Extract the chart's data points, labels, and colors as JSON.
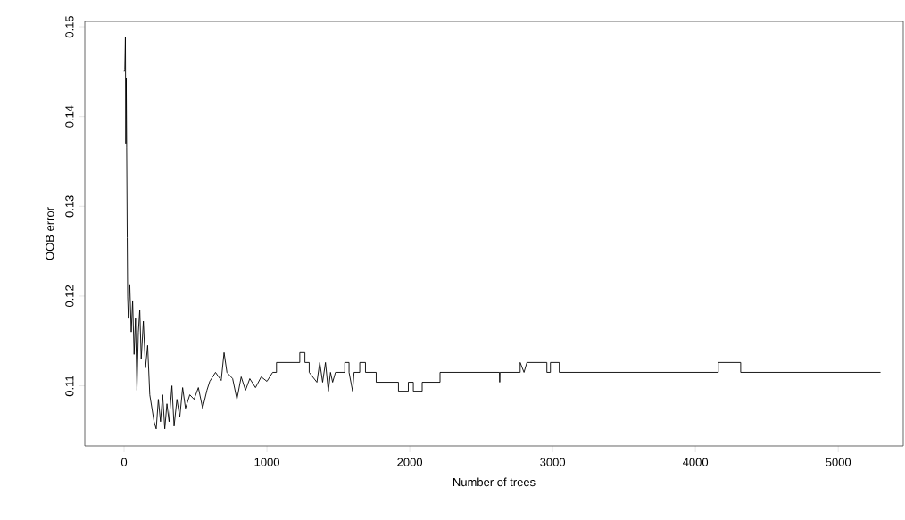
{
  "chart_data": {
    "type": "line",
    "xlabel": "Number of trees",
    "ylabel": "OOB error",
    "xlim": [
      -275,
      5455
    ],
    "ylim": [
      0.1033,
      0.1506
    ],
    "xticks": [
      0,
      1000,
      2000,
      3000,
      4000,
      5000
    ],
    "yticks": [
      {
        "value": 0.11,
        "label": "0.11"
      },
      {
        "value": 0.12,
        "label": "0.12"
      },
      {
        "value": 0.13,
        "label": "0.13"
      },
      {
        "value": 0.14,
        "label": "0.14"
      },
      {
        "value": 0.15,
        "label": "0.15"
      }
    ],
    "grid": false,
    "legend": false,
    "marker": "none",
    "line_style": "solid",
    "series": [
      {
        "color": "#000000",
        "x": [
          1,
          5,
          9,
          12,
          15,
          18,
          22,
          25,
          30,
          40,
          50,
          60,
          70,
          80,
          90,
          100,
          110,
          120,
          135,
          150,
          165,
          180,
          195,
          210,
          225,
          240,
          255,
          270,
          285,
          300,
          315,
          335,
          350,
          370,
          390,
          410,
          430,
          460,
          490,
          520,
          550,
          580,
          600,
          640,
          680,
          700,
          720,
          760,
          790,
          820,
          850,
          880,
          920,
          960,
          1000,
          1040,
          1067,
          1067,
          1230,
          1230,
          1266,
          1266,
          1296,
          1296,
          1350,
          1370,
          1390,
          1410,
          1430,
          1445,
          1460,
          1480,
          1545,
          1545,
          1575,
          1575,
          1600,
          1610,
          1650,
          1650,
          1690,
          1690,
          1765,
          1765,
          1921,
          1921,
          1990,
          1990,
          2025,
          2025,
          2087,
          2087,
          2212,
          2212,
          2628,
          2630,
          2632,
          2773,
          2773,
          2800,
          2820,
          2840,
          2960,
          2960,
          2985,
          2985,
          3047,
          3047,
          4160,
          4160,
          4317,
          4317,
          5296
        ],
        "values": [
          0.145,
          0.1453,
          0.1489,
          0.137,
          0.1443,
          0.1365,
          0.1265,
          0.1199,
          0.1175,
          0.1213,
          0.116,
          0.1195,
          0.1135,
          0.1175,
          0.1095,
          0.116,
          0.1185,
          0.113,
          0.1172,
          0.112,
          0.1145,
          0.109,
          0.1075,
          0.106,
          0.1052,
          0.1085,
          0.106,
          0.109,
          0.1052,
          0.108,
          0.106,
          0.11,
          0.1055,
          0.1085,
          0.1065,
          0.1098,
          0.1075,
          0.109,
          0.1085,
          0.1098,
          0.1075,
          0.1095,
          0.1105,
          0.1115,
          0.1106,
          0.1137,
          0.1115,
          0.1108,
          0.1085,
          0.111,
          0.1095,
          0.1108,
          0.1098,
          0.111,
          0.1105,
          0.1115,
          0.1115,
          0.1126,
          0.1126,
          0.1137,
          0.1137,
          0.1126,
          0.1126,
          0.1115,
          0.1104,
          0.1126,
          0.1104,
          0.1126,
          0.1094,
          0.1115,
          0.1104,
          0.1115,
          0.1115,
          0.1126,
          0.1126,
          0.1115,
          0.1094,
          0.1115,
          0.1115,
          0.1126,
          0.1126,
          0.1115,
          0.1115,
          0.1104,
          0.1104,
          0.1094,
          0.1094,
          0.1104,
          0.1104,
          0.1094,
          0.1094,
          0.1104,
          0.1104,
          0.1115,
          0.1115,
          0.1104,
          0.1115,
          0.1115,
          0.1126,
          0.1115,
          0.1126,
          0.1126,
          0.1126,
          0.1115,
          0.1115,
          0.1126,
          0.1126,
          0.1115,
          0.1115,
          0.1126,
          0.1126,
          0.1115,
          0.1115
        ]
      }
    ]
  }
}
